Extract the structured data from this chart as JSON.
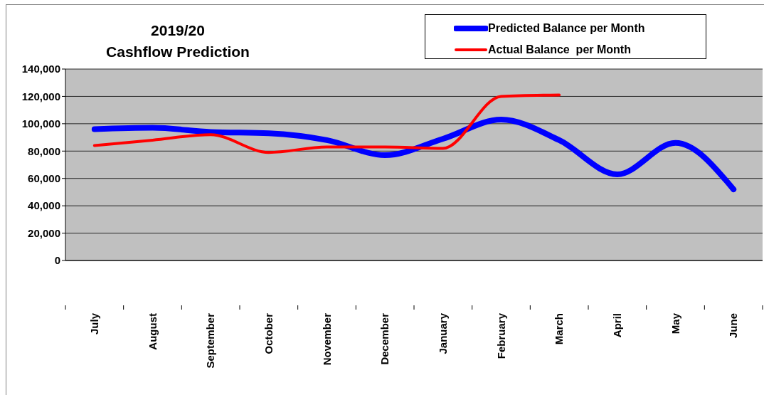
{
  "chart_data": {
    "type": "line",
    "title": "2019/20\nCashflow Prediction",
    "categories": [
      "July",
      "August",
      "September",
      "October",
      "November",
      "December",
      "January",
      "February",
      "March",
      "April",
      "May",
      "June"
    ],
    "series": [
      {
        "name": "Predicted Balance per Month",
        "color": "#0000ff",
        "values": [
          96000,
          97000,
          94000,
          93000,
          88000,
          77000,
          89000,
          103000,
          88000,
          63000,
          86000,
          52000
        ]
      },
      {
        "name": "Actual Balance  per Month",
        "color": "#ff0000",
        "values": [
          84000,
          88000,
          92000,
          79000,
          83000,
          83000,
          82000,
          120000,
          121000,
          null,
          null,
          null
        ]
      }
    ],
    "ylim": [
      0,
      140000
    ],
    "yticks": [
      0,
      {
        "value": 20000,
        "label": "20,000"
      },
      {
        "value": 40000,
        "label": "40,000"
      },
      {
        "value": 60000,
        "label": "60,000"
      },
      {
        "value": 80000,
        "label": "80,000"
      },
      {
        "value": 100000,
        "label": "100,000"
      },
      {
        "value": 120000,
        "label": "120,000"
      },
      {
        "value": 140000,
        "label": "140,000"
      }
    ],
    "grid": "y",
    "legend": "top right",
    "marker": "none"
  }
}
